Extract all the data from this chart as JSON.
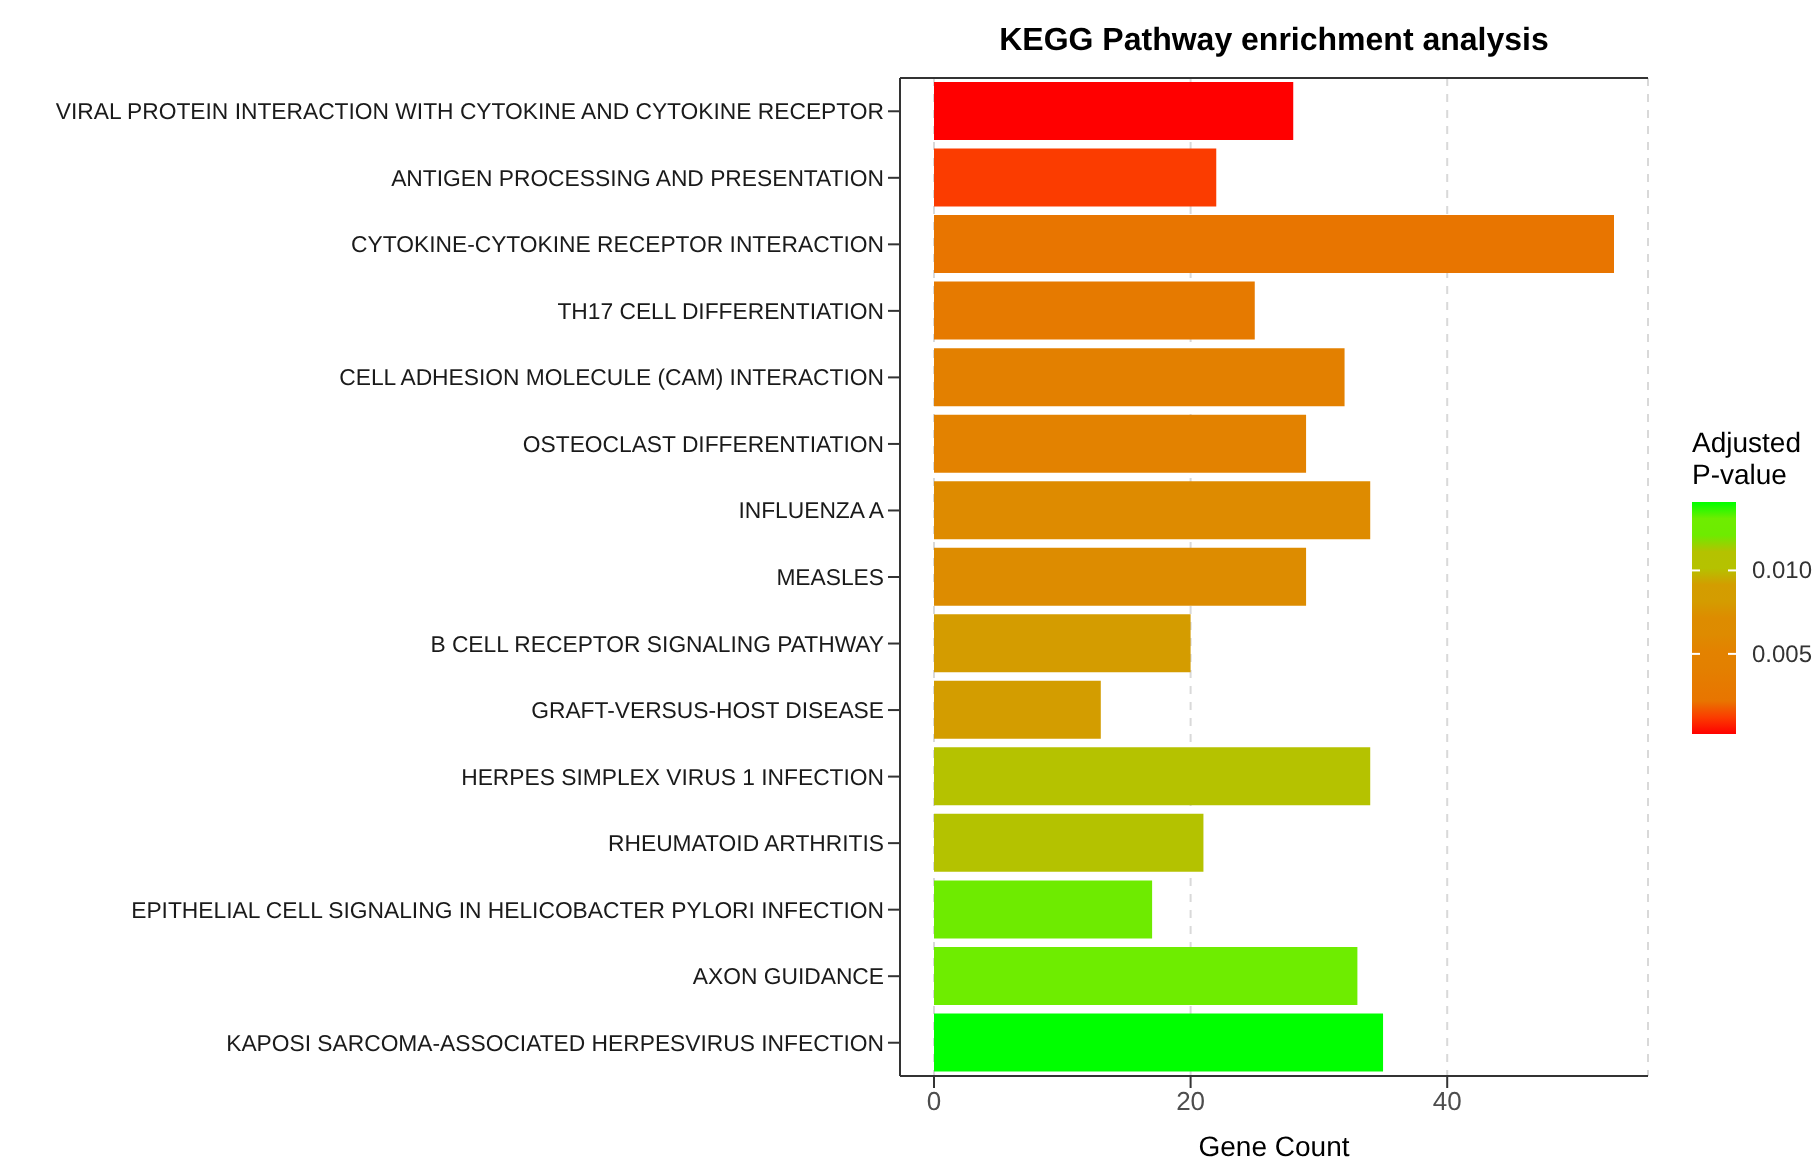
{
  "chart_data": {
    "type": "bar",
    "orientation": "horizontal",
    "title": "KEGG Pathway enrichment analysis",
    "xlabel": "Gene Count",
    "clabel": "Adjusted P-value",
    "categories": [
      "VIRAL PROTEIN INTERACTION WITH CYTOKINE AND CYTOKINE RECEPTOR",
      "ANTIGEN PROCESSING AND PRESENTATION",
      "CYTOKINE-CYTOKINE RECEPTOR INTERACTION",
      "TH17 CELL DIFFERENTIATION",
      "CELL ADHESION MOLECULE (CAM) INTERACTION",
      "OSTEOCLAST DIFFERENTIATION",
      "INFLUENZA A",
      "MEASLES",
      "B CELL RECEPTOR SIGNALING PATHWAY",
      "GRAFT-VERSUS-HOST DISEASE",
      "HERPES SIMPLEX VIRUS 1 INFECTION",
      "RHEUMATOID ARTHRITIS",
      "EPITHELIAL CELL SIGNALING IN HELICOBACTER PYLORI INFECTION",
      "AXON GUIDANCE",
      "KAPOSI SARCOMA-ASSOCIATED HERPESVIRUS INFECTION"
    ],
    "values": [
      28,
      22,
      53,
      25,
      32,
      29,
      34,
      29,
      20,
      13,
      34,
      21,
      17,
      33,
      35
    ],
    "colors": [
      "#ff0000",
      "#fb3c00",
      "#e87500",
      "#e67a00",
      "#e38000",
      "#e38200",
      "#de8b00",
      "#dd8c00",
      "#d49c00",
      "#d39d00",
      "#b5c200",
      "#b4c200",
      "#6eeb00",
      "#6eed00",
      "#00ff00"
    ],
    "xlim": [
      -2.65,
      55.65
    ],
    "xticks": [
      0,
      20,
      40
    ],
    "clim": [
      0.0002,
      0.0141
    ],
    "cticks": [
      {
        "value": 0.005,
        "label": "0.005"
      },
      {
        "value": 0.01,
        "label": "0.010"
      }
    ],
    "grid": "x"
  }
}
